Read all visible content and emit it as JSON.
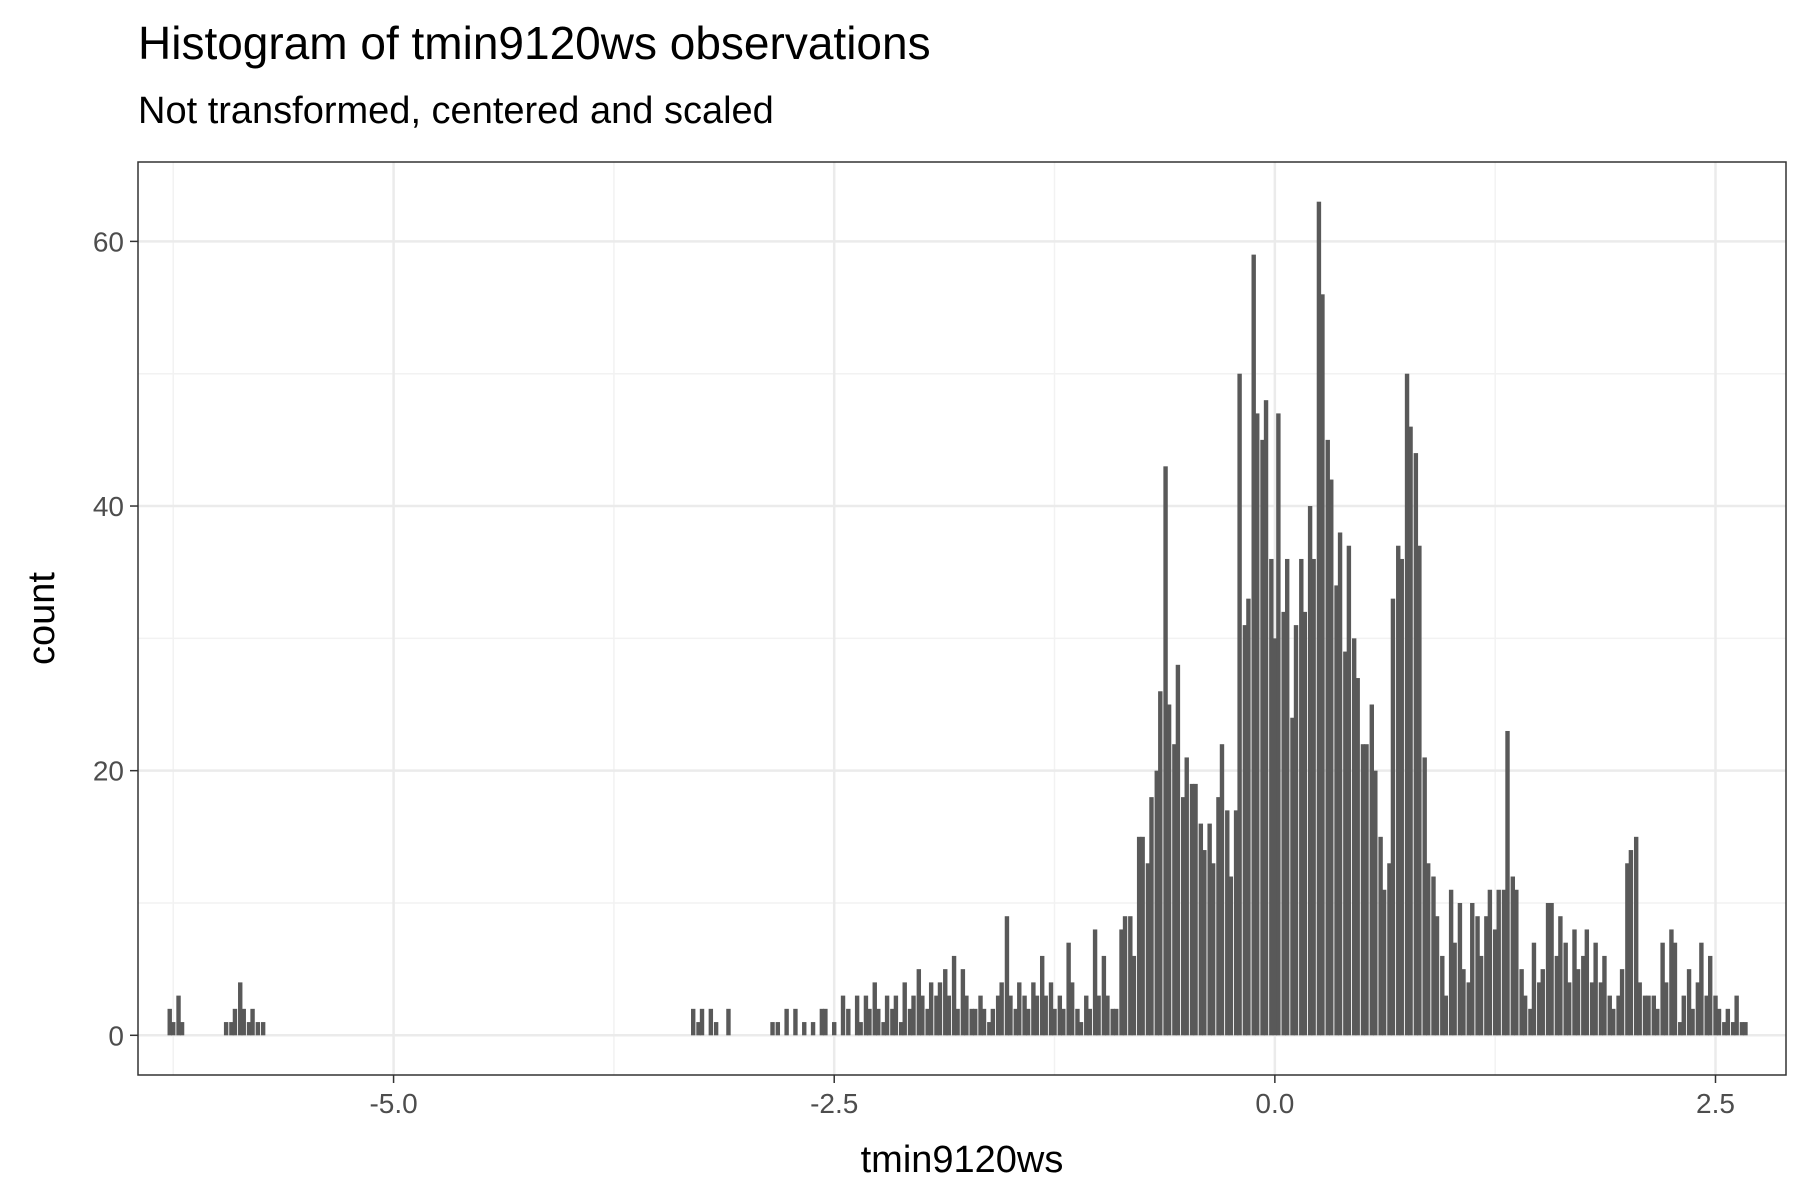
{
  "chart_data": {
    "type": "bar",
    "title": "Histogram of tmin9120ws observations",
    "subtitle": "Not transformed, centered and scaled",
    "xlabel": "tmin9120ws",
    "ylabel": "count",
    "xlim": [
      -6.45,
      2.9
    ],
    "ylim": [
      -3,
      66
    ],
    "x_ticks": [
      -5.0,
      -2.5,
      0.0,
      2.5
    ],
    "x_tick_labels": [
      "-5.0",
      "-2.5",
      "0.0",
      "2.5"
    ],
    "y_ticks": [
      0,
      20,
      40,
      60
    ],
    "y_tick_labels": [
      "0",
      "20",
      "40",
      "60"
    ],
    "grid": true,
    "legend": "none",
    "bar_color": "#595959",
    "bins": [
      {
        "x": -6.27,
        "count": 2
      },
      {
        "x": -6.25,
        "count": 1
      },
      {
        "x": -6.22,
        "count": 3
      },
      {
        "x": -6.2,
        "count": 1
      },
      {
        "x": -5.95,
        "count": 1
      },
      {
        "x": -5.92,
        "count": 1
      },
      {
        "x": -5.9,
        "count": 2
      },
      {
        "x": -5.87,
        "count": 4
      },
      {
        "x": -5.85,
        "count": 2
      },
      {
        "x": -5.82,
        "count": 1
      },
      {
        "x": -5.8,
        "count": 2
      },
      {
        "x": -5.77,
        "count": 1
      },
      {
        "x": -5.74,
        "count": 1
      },
      {
        "x": -3.3,
        "count": 2
      },
      {
        "x": -3.27,
        "count": 1
      },
      {
        "x": -3.25,
        "count": 2
      },
      {
        "x": -3.2,
        "count": 2
      },
      {
        "x": -3.17,
        "count": 1
      },
      {
        "x": -3.1,
        "count": 2
      },
      {
        "x": -2.85,
        "count": 1
      },
      {
        "x": -2.82,
        "count": 1
      },
      {
        "x": -2.77,
        "count": 2
      },
      {
        "x": -2.72,
        "count": 2
      },
      {
        "x": -2.67,
        "count": 1
      },
      {
        "x": -2.62,
        "count": 1
      },
      {
        "x": -2.57,
        "count": 2
      },
      {
        "x": -2.55,
        "count": 2
      },
      {
        "x": -2.5,
        "count": 1
      },
      {
        "x": -2.45,
        "count": 3
      },
      {
        "x": -2.42,
        "count": 2
      },
      {
        "x": -2.37,
        "count": 3
      },
      {
        "x": -2.35,
        "count": 1
      },
      {
        "x": -2.32,
        "count": 3
      },
      {
        "x": -2.3,
        "count": 2
      },
      {
        "x": -2.27,
        "count": 4
      },
      {
        "x": -2.25,
        "count": 2
      },
      {
        "x": -2.22,
        "count": 1
      },
      {
        "x": -2.2,
        "count": 3
      },
      {
        "x": -2.17,
        "count": 2
      },
      {
        "x": -2.15,
        "count": 3
      },
      {
        "x": -2.12,
        "count": 1
      },
      {
        "x": -2.1,
        "count": 4
      },
      {
        "x": -2.07,
        "count": 2
      },
      {
        "x": -2.05,
        "count": 3
      },
      {
        "x": -2.02,
        "count": 5
      },
      {
        "x": -2.0,
        "count": 3
      },
      {
        "x": -1.97,
        "count": 2
      },
      {
        "x": -1.95,
        "count": 4
      },
      {
        "x": -1.92,
        "count": 3
      },
      {
        "x": -1.9,
        "count": 4
      },
      {
        "x": -1.87,
        "count": 5
      },
      {
        "x": -1.85,
        "count": 3
      },
      {
        "x": -1.82,
        "count": 6
      },
      {
        "x": -1.8,
        "count": 2
      },
      {
        "x": -1.77,
        "count": 5
      },
      {
        "x": -1.75,
        "count": 3
      },
      {
        "x": -1.72,
        "count": 2
      },
      {
        "x": -1.7,
        "count": 2
      },
      {
        "x": -1.67,
        "count": 3
      },
      {
        "x": -1.65,
        "count": 2
      },
      {
        "x": -1.62,
        "count": 1
      },
      {
        "x": -1.6,
        "count": 2
      },
      {
        "x": -1.57,
        "count": 3
      },
      {
        "x": -1.55,
        "count": 4
      },
      {
        "x": -1.52,
        "count": 9
      },
      {
        "x": -1.5,
        "count": 3
      },
      {
        "x": -1.47,
        "count": 2
      },
      {
        "x": -1.45,
        "count": 4
      },
      {
        "x": -1.42,
        "count": 3
      },
      {
        "x": -1.4,
        "count": 2
      },
      {
        "x": -1.37,
        "count": 4
      },
      {
        "x": -1.35,
        "count": 3
      },
      {
        "x": -1.32,
        "count": 6
      },
      {
        "x": -1.3,
        "count": 3
      },
      {
        "x": -1.27,
        "count": 4
      },
      {
        "x": -1.25,
        "count": 2
      },
      {
        "x": -1.22,
        "count": 3
      },
      {
        "x": -1.2,
        "count": 2
      },
      {
        "x": -1.17,
        "count": 7
      },
      {
        "x": -1.15,
        "count": 4
      },
      {
        "x": -1.12,
        "count": 2
      },
      {
        "x": -1.1,
        "count": 1
      },
      {
        "x": -1.07,
        "count": 3
      },
      {
        "x": -1.05,
        "count": 2
      },
      {
        "x": -1.02,
        "count": 8
      },
      {
        "x": -1.0,
        "count": 3
      },
      {
        "x": -0.97,
        "count": 6
      },
      {
        "x": -0.95,
        "count": 3
      },
      {
        "x": -0.92,
        "count": 2
      },
      {
        "x": -0.9,
        "count": 2
      },
      {
        "x": -0.87,
        "count": 8
      },
      {
        "x": -0.85,
        "count": 9
      },
      {
        "x": -0.82,
        "count": 9
      },
      {
        "x": -0.8,
        "count": 6
      },
      {
        "x": -0.77,
        "count": 15
      },
      {
        "x": -0.75,
        "count": 15
      },
      {
        "x": -0.72,
        "count": 13
      },
      {
        "x": -0.7,
        "count": 18
      },
      {
        "x": -0.67,
        "count": 20
      },
      {
        "x": -0.65,
        "count": 26
      },
      {
        "x": -0.62,
        "count": 43
      },
      {
        "x": -0.6,
        "count": 25
      },
      {
        "x": -0.57,
        "count": 22
      },
      {
        "x": -0.55,
        "count": 28
      },
      {
        "x": -0.52,
        "count": 18
      },
      {
        "x": -0.5,
        "count": 21
      },
      {
        "x": -0.47,
        "count": 19
      },
      {
        "x": -0.45,
        "count": 19
      },
      {
        "x": -0.42,
        "count": 16
      },
      {
        "x": -0.4,
        "count": 14
      },
      {
        "x": -0.37,
        "count": 16
      },
      {
        "x": -0.35,
        "count": 13
      },
      {
        "x": -0.32,
        "count": 18
      },
      {
        "x": -0.3,
        "count": 22
      },
      {
        "x": -0.27,
        "count": 17
      },
      {
        "x": -0.25,
        "count": 12
      },
      {
        "x": -0.22,
        "count": 17
      },
      {
        "x": -0.2,
        "count": 50
      },
      {
        "x": -0.17,
        "count": 31
      },
      {
        "x": -0.15,
        "count": 33
      },
      {
        "x": -0.12,
        "count": 59
      },
      {
        "x": -0.1,
        "count": 47
      },
      {
        "x": -0.07,
        "count": 45
      },
      {
        "x": -0.05,
        "count": 48
      },
      {
        "x": -0.02,
        "count": 36
      },
      {
        "x": 0.0,
        "count": 30
      },
      {
        "x": 0.02,
        "count": 47
      },
      {
        "x": 0.05,
        "count": 32
      },
      {
        "x": 0.07,
        "count": 36
      },
      {
        "x": 0.1,
        "count": 24
      },
      {
        "x": 0.12,
        "count": 31
      },
      {
        "x": 0.15,
        "count": 36
      },
      {
        "x": 0.17,
        "count": 32
      },
      {
        "x": 0.2,
        "count": 40
      },
      {
        "x": 0.22,
        "count": 36
      },
      {
        "x": 0.25,
        "count": 63
      },
      {
        "x": 0.27,
        "count": 56
      },
      {
        "x": 0.3,
        "count": 45
      },
      {
        "x": 0.32,
        "count": 42
      },
      {
        "x": 0.35,
        "count": 34
      },
      {
        "x": 0.37,
        "count": 38
      },
      {
        "x": 0.4,
        "count": 29
      },
      {
        "x": 0.42,
        "count": 37
      },
      {
        "x": 0.45,
        "count": 30
      },
      {
        "x": 0.47,
        "count": 27
      },
      {
        "x": 0.5,
        "count": 22
      },
      {
        "x": 0.52,
        "count": 22
      },
      {
        "x": 0.55,
        "count": 25
      },
      {
        "x": 0.57,
        "count": 20
      },
      {
        "x": 0.6,
        "count": 15
      },
      {
        "x": 0.62,
        "count": 11
      },
      {
        "x": 0.65,
        "count": 13
      },
      {
        "x": 0.67,
        "count": 33
      },
      {
        "x": 0.7,
        "count": 37
      },
      {
        "x": 0.72,
        "count": 36
      },
      {
        "x": 0.75,
        "count": 50
      },
      {
        "x": 0.77,
        "count": 46
      },
      {
        "x": 0.8,
        "count": 44
      },
      {
        "x": 0.82,
        "count": 37
      },
      {
        "x": 0.85,
        "count": 21
      },
      {
        "x": 0.87,
        "count": 13
      },
      {
        "x": 0.9,
        "count": 12
      },
      {
        "x": 0.92,
        "count": 9
      },
      {
        "x": 0.95,
        "count": 6
      },
      {
        "x": 0.97,
        "count": 3
      },
      {
        "x": 1.0,
        "count": 11
      },
      {
        "x": 1.02,
        "count": 7
      },
      {
        "x": 1.05,
        "count": 10
      },
      {
        "x": 1.07,
        "count": 5
      },
      {
        "x": 1.1,
        "count": 4
      },
      {
        "x": 1.12,
        "count": 10
      },
      {
        "x": 1.15,
        "count": 9
      },
      {
        "x": 1.17,
        "count": 6
      },
      {
        "x": 1.2,
        "count": 9
      },
      {
        "x": 1.22,
        "count": 11
      },
      {
        "x": 1.25,
        "count": 8
      },
      {
        "x": 1.27,
        "count": 11
      },
      {
        "x": 1.3,
        "count": 11
      },
      {
        "x": 1.32,
        "count": 23
      },
      {
        "x": 1.35,
        "count": 12
      },
      {
        "x": 1.37,
        "count": 11
      },
      {
        "x": 1.4,
        "count": 5
      },
      {
        "x": 1.42,
        "count": 3
      },
      {
        "x": 1.45,
        "count": 2
      },
      {
        "x": 1.47,
        "count": 7
      },
      {
        "x": 1.5,
        "count": 4
      },
      {
        "x": 1.52,
        "count": 5
      },
      {
        "x": 1.55,
        "count": 10
      },
      {
        "x": 1.57,
        "count": 10
      },
      {
        "x": 1.6,
        "count": 6
      },
      {
        "x": 1.62,
        "count": 9
      },
      {
        "x": 1.65,
        "count": 7
      },
      {
        "x": 1.67,
        "count": 4
      },
      {
        "x": 1.7,
        "count": 8
      },
      {
        "x": 1.72,
        "count": 5
      },
      {
        "x": 1.75,
        "count": 6
      },
      {
        "x": 1.77,
        "count": 8
      },
      {
        "x": 1.8,
        "count": 4
      },
      {
        "x": 1.82,
        "count": 7
      },
      {
        "x": 1.85,
        "count": 4
      },
      {
        "x": 1.87,
        "count": 6
      },
      {
        "x": 1.9,
        "count": 3
      },
      {
        "x": 1.92,
        "count": 2
      },
      {
        "x": 1.95,
        "count": 3
      },
      {
        "x": 1.97,
        "count": 5
      },
      {
        "x": 2.0,
        "count": 13
      },
      {
        "x": 2.02,
        "count": 14
      },
      {
        "x": 2.05,
        "count": 15
      },
      {
        "x": 2.07,
        "count": 4
      },
      {
        "x": 2.1,
        "count": 3
      },
      {
        "x": 2.12,
        "count": 3
      },
      {
        "x": 2.15,
        "count": 3
      },
      {
        "x": 2.17,
        "count": 2
      },
      {
        "x": 2.2,
        "count": 7
      },
      {
        "x": 2.22,
        "count": 4
      },
      {
        "x": 2.25,
        "count": 8
      },
      {
        "x": 2.27,
        "count": 7
      },
      {
        "x": 2.3,
        "count": 1
      },
      {
        "x": 2.32,
        "count": 3
      },
      {
        "x": 2.35,
        "count": 5
      },
      {
        "x": 2.37,
        "count": 2
      },
      {
        "x": 2.4,
        "count": 4
      },
      {
        "x": 2.42,
        "count": 7
      },
      {
        "x": 2.45,
        "count": 3
      },
      {
        "x": 2.47,
        "count": 6
      },
      {
        "x": 2.5,
        "count": 3
      },
      {
        "x": 2.52,
        "count": 2
      },
      {
        "x": 2.55,
        "count": 1
      },
      {
        "x": 2.57,
        "count": 2
      },
      {
        "x": 2.6,
        "count": 1
      },
      {
        "x": 2.62,
        "count": 3
      },
      {
        "x": 2.65,
        "count": 1
      },
      {
        "x": 2.67,
        "count": 1
      }
    ]
  }
}
